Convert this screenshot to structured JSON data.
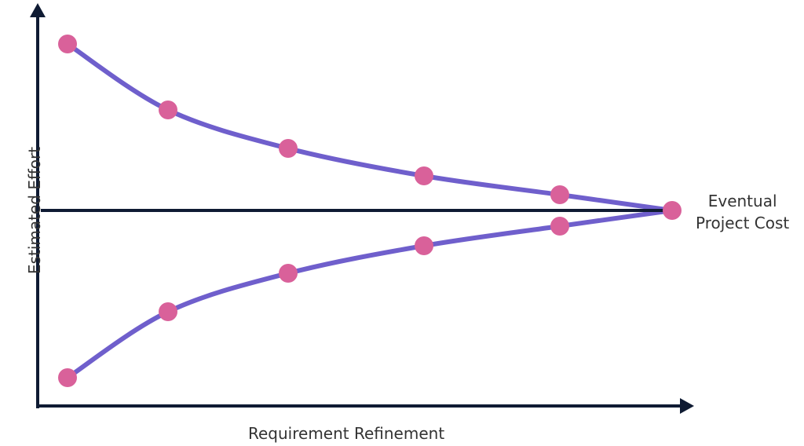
{
  "labels": {
    "x_axis": "Requirement Refinement",
    "y_axis": "Estimated Effort",
    "target_line_line1": "Eventual",
    "target_line_line2": "Project Cost"
  },
  "colors": {
    "axis": "#0f1b33",
    "curve": "#6f5fcc",
    "marker": "#d9619a",
    "text": "#333333"
  }
}
